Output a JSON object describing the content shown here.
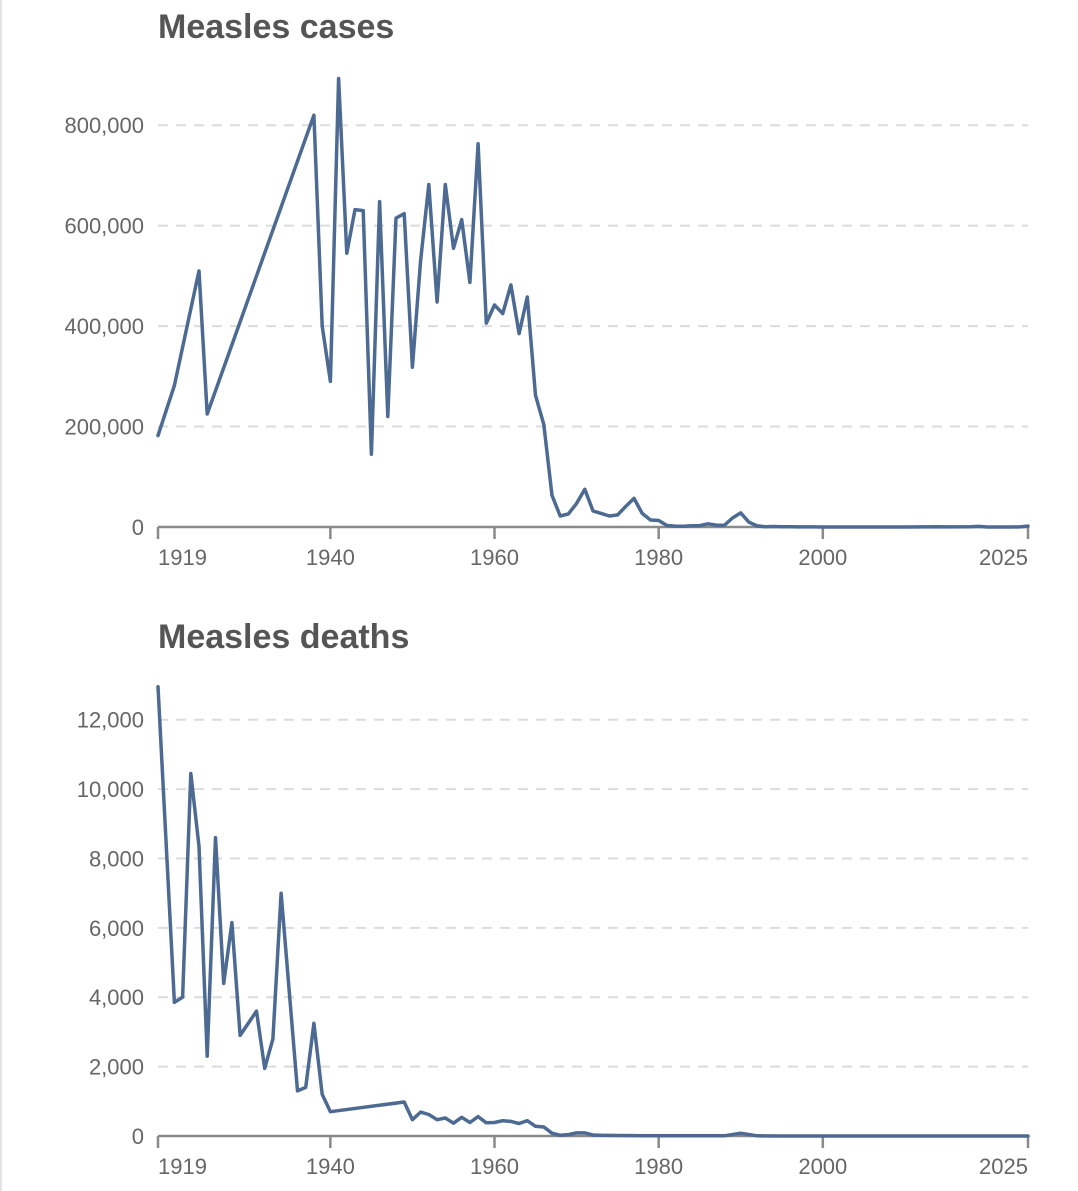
{
  "chart_data": [
    {
      "type": "line",
      "title": "Measles cases",
      "xlabel": "",
      "ylabel": "",
      "xlim": [
        1919,
        2025
      ],
      "ylim": [
        0,
        900000
      ],
      "grid": true,
      "y_ticks": [
        0,
        200000,
        400000,
        600000,
        800000
      ],
      "y_tick_labels": [
        "0",
        "200,000",
        "400,000",
        "600,000",
        "800,000"
      ],
      "x_ticks": [
        1919,
        1940,
        1960,
        1980,
        2000,
        2025
      ],
      "x_tick_labels": [
        "1919",
        "1940",
        "1960",
        "1980",
        "2000",
        "2025"
      ],
      "color": "#4c6a92",
      "series": [
        {
          "name": "Measles cases",
          "x": [
            1919,
            1921,
            1924,
            1925,
            1938,
            1939,
            1940,
            1941,
            1942,
            1943,
            1944,
            1945,
            1946,
            1947,
            1948,
            1949,
            1950,
            1951,
            1952,
            1953,
            1954,
            1955,
            1956,
            1957,
            1958,
            1959,
            1960,
            1961,
            1962,
            1963,
            1964,
            1965,
            1966,
            1967,
            1968,
            1969,
            1970,
            1971,
            1972,
            1973,
            1974,
            1975,
            1976,
            1977,
            1978,
            1979,
            1980,
            1981,
            1982,
            1983,
            1984,
            1985,
            1986,
            1987,
            1988,
            1989,
            1990,
            1991,
            1992,
            1993,
            1994,
            1995,
            1996,
            1997,
            1998,
            1999,
            2000,
            2005,
            2010,
            2014,
            2015,
            2018,
            2019,
            2020,
            2023,
            2024,
            2025
          ],
          "values": [
            182000,
            282000,
            510000,
            225000,
            820000,
            400000,
            290000,
            893000,
            545000,
            632000,
            630000,
            145000,
            648000,
            220000,
            615000,
            624000,
            318000,
            530000,
            682000,
            448000,
            682000,
            555000,
            612000,
            487000,
            763000,
            406000,
            442000,
            425000,
            482000,
            385000,
            458000,
            262000,
            204000,
            63000,
            22000,
            26000,
            47000,
            75000,
            32000,
            27000,
            22000,
            24000,
            41000,
            57000,
            27000,
            14000,
            13000,
            3000,
            1700,
            1500,
            2600,
            2800,
            6300,
            3700,
            3400,
            18000,
            28000,
            9600,
            2200,
            300,
            960,
            300,
            500,
            140,
            100,
            100,
            86,
            66,
            63,
            667,
            188,
            375,
            1274,
            13,
            59,
            285,
            1800
          ]
        }
      ]
    },
    {
      "type": "line",
      "title": "Measles deaths",
      "xlabel": "",
      "ylabel": "",
      "xlim": [
        1919,
        2025
      ],
      "ylim": [
        0,
        13000
      ],
      "grid": true,
      "y_ticks": [
        0,
        2000,
        4000,
        6000,
        8000,
        10000,
        12000
      ],
      "y_tick_labels": [
        "0",
        "2,000",
        "4,000",
        "6,000",
        "8,000",
        "10,000",
        "12,000"
      ],
      "x_ticks": [
        1919,
        1940,
        1960,
        1980,
        2000,
        2025
      ],
      "x_tick_labels": [
        "1919",
        "1940",
        "1960",
        "1980",
        "2000",
        "2025"
      ],
      "color": "#4c6a92",
      "series": [
        {
          "name": "Measles deaths",
          "x": [
            1919,
            1921,
            1922,
            1923,
            1924,
            1925,
            1926,
            1927,
            1928,
            1929,
            1931,
            1932,
            1933,
            1934,
            1936,
            1937,
            1938,
            1939,
            1940,
            1949,
            1950,
            1951,
            1952,
            1953,
            1954,
            1955,
            1956,
            1957,
            1958,
            1959,
            1960,
            1961,
            1962,
            1963,
            1964,
            1965,
            1966,
            1967,
            1968,
            1969,
            1970,
            1971,
            1972,
            1973,
            1975,
            1978,
            1980,
            1985,
            1988,
            1990,
            1992,
            1995,
            2000,
            2010,
            2020,
            2025
          ],
          "values": [
            12950,
            3850,
            4000,
            10450,
            8350,
            2300,
            8600,
            4400,
            6150,
            2900,
            3600,
            1950,
            2800,
            7000,
            1300,
            1400,
            3250,
            1200,
            700,
            980,
            470,
            690,
            620,
            470,
            520,
            370,
            540,
            390,
            560,
            380,
            390,
            440,
            420,
            360,
            440,
            280,
            260,
            80,
            20,
            40,
            90,
            90,
            30,
            20,
            15,
            10,
            5,
            5,
            5,
            80,
            5,
            0,
            0,
            0,
            0,
            0
          ]
        }
      ]
    }
  ]
}
